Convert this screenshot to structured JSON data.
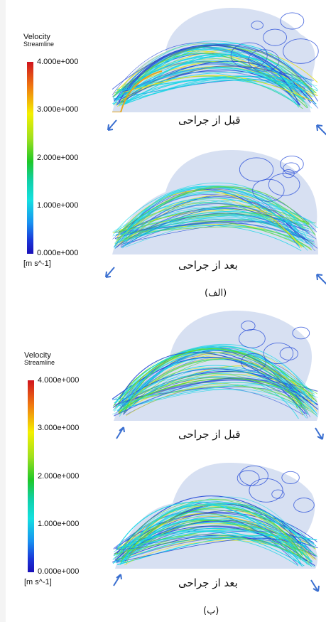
{
  "legend": {
    "title": "Velocity",
    "subtitle": "Streamline",
    "ticks": [
      "4.000e+000",
      "3.000e+000",
      "2.000e+000",
      "1.000e+000",
      "0.000e+000"
    ],
    "unit": "[m s^-1]"
  },
  "panel_a": {
    "caption_before": "قبل از جراحی",
    "caption_after": "بعد از جراحی",
    "label": "(الف)"
  },
  "panel_b": {
    "caption_before": "قبل از جراحی",
    "caption_after": "بعد از جراحی",
    "label": "(ب)"
  },
  "colors": {
    "shell": "#c9d6ee",
    "stream_blue": "#2a4fd8",
    "stream_cyan": "#18d6e6",
    "stream_green": "#58d83a",
    "stream_yellow": "#e6e21a",
    "arrow": "#3a6fd0"
  }
}
